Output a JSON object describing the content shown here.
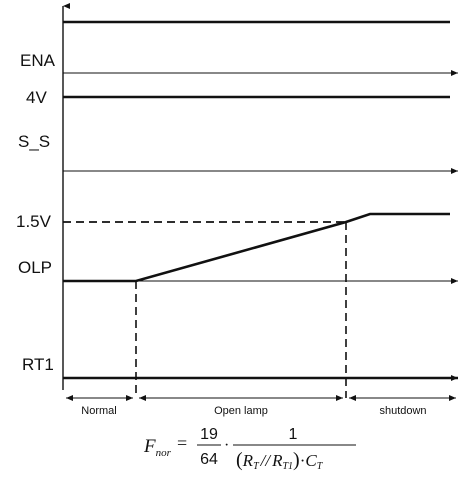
{
  "signals": [
    {
      "id": "top",
      "label": ""
    },
    {
      "id": "ena",
      "label": "ENA"
    },
    {
      "id": "v4",
      "label": "4V"
    },
    {
      "id": "ss",
      "label": "S_S"
    },
    {
      "id": "v15",
      "label": "1.5V"
    },
    {
      "id": "olp",
      "label": "OLP"
    },
    {
      "id": "rt1",
      "label": "RT1"
    }
  ],
  "phases": [
    {
      "id": "normal",
      "label": "Normal"
    },
    {
      "id": "open_lamp",
      "label": "Open lamp"
    },
    {
      "id": "shutdown",
      "label": "shutdown"
    }
  ],
  "formula": {
    "lhs_main": "F",
    "lhs_sub": "nor",
    "equals": "=",
    "frac1_num": "19",
    "frac1_den": "64",
    "dot": "·",
    "frac2_num": "1",
    "den_open": "(",
    "den_r1": "R",
    "den_r1_sub": "T",
    "den_par": "//",
    "den_r2": "R",
    "den_r2_sub": "T1",
    "den_close": ")",
    "den_dot": "·",
    "den_c": "C",
    "den_c_sub": "T"
  },
  "colors": {
    "line": "#111111",
    "background": "#ffffff"
  }
}
